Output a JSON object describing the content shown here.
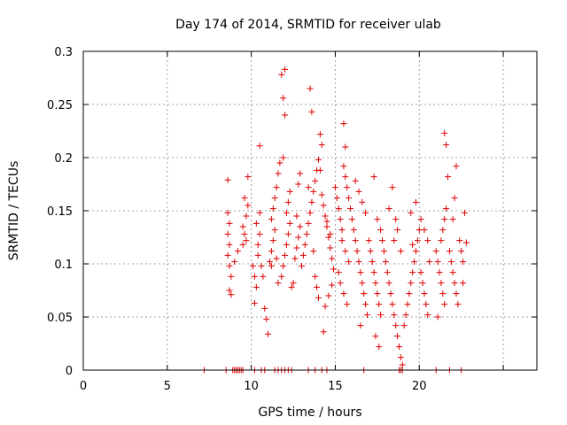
{
  "chart_data": {
    "type": "scatter",
    "title": "Day 174 of 2014, SRMTID for receiver ulab",
    "xlabel": "GPS time / hours",
    "ylabel": "SRMTID / TECUs",
    "xlim": [
      0,
      27
    ],
    "ylim": [
      0,
      0.3
    ],
    "xticks": [
      0,
      5,
      10,
      15,
      20,
      25
    ],
    "xtick_labels": [
      "0",
      "5",
      "10",
      "15",
      "20",
      ""
    ],
    "yticks": [
      0,
      0.05,
      0.1,
      0.15,
      0.2,
      0.25,
      0.3
    ],
    "ytick_labels": [
      "0",
      "0.05",
      "0.1",
      "0.15",
      "0.2",
      "0.25",
      "0.3"
    ],
    "grid": true,
    "series": [
      {
        "name": "SRMTID",
        "color": "#e00000",
        "marker": "plus",
        "points": [
          [
            7.2,
            0.0
          ],
          [
            8.5,
            0.0
          ],
          [
            8.9,
            0.0
          ],
          [
            9.0,
            0.0
          ],
          [
            9.1,
            0.0
          ],
          [
            9.2,
            0.0
          ],
          [
            9.3,
            0.0
          ],
          [
            9.4,
            0.0
          ],
          [
            9.5,
            0.0
          ],
          [
            10.2,
            0.0
          ],
          [
            10.6,
            0.0
          ],
          [
            10.8,
            0.0
          ],
          [
            11.4,
            0.0
          ],
          [
            11.6,
            0.0
          ],
          [
            11.8,
            0.0
          ],
          [
            12.0,
            0.0
          ],
          [
            12.2,
            0.0
          ],
          [
            12.4,
            0.0
          ],
          [
            13.4,
            0.0
          ],
          [
            13.8,
            0.0
          ],
          [
            14.2,
            0.0
          ],
          [
            14.5,
            0.0
          ],
          [
            16.7,
            0.0
          ],
          [
            18.8,
            0.0
          ],
          [
            18.9,
            0.0
          ],
          [
            19.0,
            0.0
          ],
          [
            21.0,
            0.0
          ],
          [
            21.8,
            0.0
          ],
          [
            22.5,
            0.0
          ],
          [
            8.6,
            0.179
          ],
          [
            8.6,
            0.148
          ],
          [
            8.7,
            0.138
          ],
          [
            8.6,
            0.128
          ],
          [
            8.7,
            0.118
          ],
          [
            8.6,
            0.108
          ],
          [
            8.7,
            0.098
          ],
          [
            8.8,
            0.088
          ],
          [
            8.7,
            0.075
          ],
          [
            8.8,
            0.071
          ],
          [
            9.0,
            0.102
          ],
          [
            9.2,
            0.112
          ],
          [
            9.5,
            0.118
          ],
          [
            9.6,
            0.128
          ],
          [
            9.5,
            0.135
          ],
          [
            9.7,
            0.145
          ],
          [
            9.8,
            0.155
          ],
          [
            9.6,
            0.162
          ],
          [
            9.8,
            0.182
          ],
          [
            9.7,
            0.122
          ],
          [
            10.1,
            0.098
          ],
          [
            10.2,
            0.088
          ],
          [
            10.3,
            0.078
          ],
          [
            10.2,
            0.063
          ],
          [
            10.4,
            0.108
          ],
          [
            10.4,
            0.118
          ],
          [
            10.5,
            0.128
          ],
          [
            10.3,
            0.138
          ],
          [
            10.5,
            0.148
          ],
          [
            10.5,
            0.211
          ],
          [
            10.6,
            0.098
          ],
          [
            10.7,
            0.088
          ],
          [
            10.8,
            0.058
          ],
          [
            10.9,
            0.048
          ],
          [
            11.0,
            0.034
          ],
          [
            11.1,
            0.102
          ],
          [
            11.2,
            0.112
          ],
          [
            11.3,
            0.122
          ],
          [
            11.4,
            0.132
          ],
          [
            11.2,
            0.142
          ],
          [
            11.3,
            0.152
          ],
          [
            11.4,
            0.162
          ],
          [
            11.5,
            0.172
          ],
          [
            11.6,
            0.185
          ],
          [
            11.7,
            0.195
          ],
          [
            11.2,
            0.098
          ],
          [
            11.5,
            0.105
          ],
          [
            11.6,
            0.082
          ],
          [
            11.8,
            0.278
          ],
          [
            12.0,
            0.283
          ],
          [
            11.9,
            0.256
          ],
          [
            12.0,
            0.24
          ],
          [
            11.9,
            0.2
          ],
          [
            11.8,
            0.088
          ],
          [
            11.9,
            0.098
          ],
          [
            12.0,
            0.108
          ],
          [
            12.1,
            0.118
          ],
          [
            12.2,
            0.128
          ],
          [
            12.3,
            0.138
          ],
          [
            12.1,
            0.148
          ],
          [
            12.2,
            0.158
          ],
          [
            12.3,
            0.168
          ],
          [
            12.4,
            0.078
          ],
          [
            12.5,
            0.082
          ],
          [
            12.6,
            0.105
          ],
          [
            12.7,
            0.115
          ],
          [
            12.8,
            0.125
          ],
          [
            12.9,
            0.135
          ],
          [
            12.7,
            0.145
          ],
          [
            12.8,
            0.175
          ],
          [
            12.9,
            0.185
          ],
          [
            13.0,
            0.098
          ],
          [
            13.1,
            0.108
          ],
          [
            13.2,
            0.118
          ],
          [
            13.3,
            0.128
          ],
          [
            13.4,
            0.138
          ],
          [
            13.5,
            0.265
          ],
          [
            13.6,
            0.243
          ],
          [
            13.4,
            0.172
          ],
          [
            13.5,
            0.148
          ],
          [
            13.6,
            0.158
          ],
          [
            13.7,
            0.168
          ],
          [
            13.8,
            0.178
          ],
          [
            13.9,
            0.188
          ],
          [
            14.0,
            0.198
          ],
          [
            13.8,
            0.088
          ],
          [
            13.9,
            0.078
          ],
          [
            14.0,
            0.068
          ],
          [
            13.7,
            0.112
          ],
          [
            14.1,
            0.222
          ],
          [
            14.2,
            0.212
          ],
          [
            14.1,
            0.188
          ],
          [
            14.2,
            0.165
          ],
          [
            14.3,
            0.155
          ],
          [
            14.4,
            0.145
          ],
          [
            14.5,
            0.135
          ],
          [
            14.6,
            0.125
          ],
          [
            14.7,
            0.115
          ],
          [
            14.8,
            0.105
          ],
          [
            14.9,
            0.095
          ],
          [
            14.3,
            0.036
          ],
          [
            14.4,
            0.06
          ],
          [
            14.6,
            0.07
          ],
          [
            14.8,
            0.08
          ],
          [
            14.5,
            0.14
          ],
          [
            14.7,
            0.128
          ],
          [
            15.0,
            0.172
          ],
          [
            15.1,
            0.162
          ],
          [
            15.2,
            0.152
          ],
          [
            15.3,
            0.142
          ],
          [
            15.4,
            0.132
          ],
          [
            15.5,
            0.232
          ],
          [
            15.6,
            0.21
          ],
          [
            15.5,
            0.192
          ],
          [
            15.6,
            0.182
          ],
          [
            15.7,
            0.172
          ],
          [
            15.8,
            0.162
          ],
          [
            15.9,
            0.152
          ],
          [
            15.4,
            0.122
          ],
          [
            15.6,
            0.112
          ],
          [
            15.8,
            0.102
          ],
          [
            15.2,
            0.092
          ],
          [
            15.3,
            0.082
          ],
          [
            15.5,
            0.072
          ],
          [
            15.7,
            0.062
          ],
          [
            16.0,
            0.142
          ],
          [
            16.1,
            0.132
          ],
          [
            16.2,
            0.122
          ],
          [
            16.3,
            0.112
          ],
          [
            16.4,
            0.102
          ],
          [
            16.5,
            0.092
          ],
          [
            16.6,
            0.082
          ],
          [
            16.7,
            0.072
          ],
          [
            16.8,
            0.062
          ],
          [
            16.9,
            0.052
          ],
          [
            16.2,
            0.178
          ],
          [
            16.4,
            0.168
          ],
          [
            16.6,
            0.158
          ],
          [
            16.8,
            0.148
          ],
          [
            16.5,
            0.042
          ],
          [
            17.0,
            0.122
          ],
          [
            17.1,
            0.112
          ],
          [
            17.2,
            0.102
          ],
          [
            17.3,
            0.092
          ],
          [
            17.4,
            0.082
          ],
          [
            17.5,
            0.072
          ],
          [
            17.6,
            0.062
          ],
          [
            17.7,
            0.052
          ],
          [
            17.3,
            0.182
          ],
          [
            17.5,
            0.142
          ],
          [
            17.7,
            0.132
          ],
          [
            17.8,
            0.122
          ],
          [
            17.9,
            0.112
          ],
          [
            17.6,
            0.022
          ],
          [
            17.4,
            0.032
          ],
          [
            18.0,
            0.102
          ],
          [
            18.1,
            0.092
          ],
          [
            18.2,
            0.082
          ],
          [
            18.3,
            0.072
          ],
          [
            18.4,
            0.062
          ],
          [
            18.5,
            0.052
          ],
          [
            18.6,
            0.042
          ],
          [
            18.7,
            0.032
          ],
          [
            18.8,
            0.022
          ],
          [
            18.9,
            0.012
          ],
          [
            19.0,
            0.005
          ],
          [
            18.4,
            0.172
          ],
          [
            18.6,
            0.142
          ],
          [
            18.7,
            0.132
          ],
          [
            18.5,
            0.122
          ],
          [
            18.9,
            0.112
          ],
          [
            18.2,
            0.152
          ],
          [
            19.1,
            0.042
          ],
          [
            19.2,
            0.052
          ],
          [
            19.3,
            0.062
          ],
          [
            19.4,
            0.072
          ],
          [
            19.5,
            0.082
          ],
          [
            19.6,
            0.092
          ],
          [
            19.7,
            0.102
          ],
          [
            19.8,
            0.112
          ],
          [
            19.9,
            0.122
          ],
          [
            20.0,
            0.132
          ],
          [
            19.5,
            0.148
          ],
          [
            19.8,
            0.158
          ],
          [
            19.6,
            0.118
          ],
          [
            20.1,
            0.092
          ],
          [
            20.2,
            0.082
          ],
          [
            20.3,
            0.072
          ],
          [
            20.4,
            0.062
          ],
          [
            20.5,
            0.052
          ],
          [
            20.6,
            0.102
          ],
          [
            20.1,
            0.142
          ],
          [
            20.3,
            0.132
          ],
          [
            20.5,
            0.122
          ],
          [
            21.0,
            0.112
          ],
          [
            21.1,
            0.102
          ],
          [
            21.2,
            0.092
          ],
          [
            21.3,
            0.082
          ],
          [
            21.4,
            0.072
          ],
          [
            21.5,
            0.062
          ],
          [
            21.1,
            0.05
          ],
          [
            21.3,
            0.122
          ],
          [
            21.4,
            0.132
          ],
          [
            21.5,
            0.142
          ],
          [
            21.6,
            0.152
          ],
          [
            21.5,
            0.223
          ],
          [
            21.6,
            0.212
          ],
          [
            21.7,
            0.182
          ],
          [
            21.8,
            0.112
          ],
          [
            21.9,
            0.102
          ],
          [
            22.0,
            0.092
          ],
          [
            22.1,
            0.082
          ],
          [
            22.2,
            0.072
          ],
          [
            22.3,
            0.062
          ],
          [
            22.0,
            0.142
          ],
          [
            22.1,
            0.162
          ],
          [
            22.2,
            0.192
          ],
          [
            22.4,
            0.122
          ],
          [
            22.5,
            0.112
          ],
          [
            22.6,
            0.102
          ],
          [
            22.7,
            0.148
          ],
          [
            22.8,
            0.12
          ],
          [
            22.6,
            0.082
          ]
        ]
      }
    ]
  }
}
